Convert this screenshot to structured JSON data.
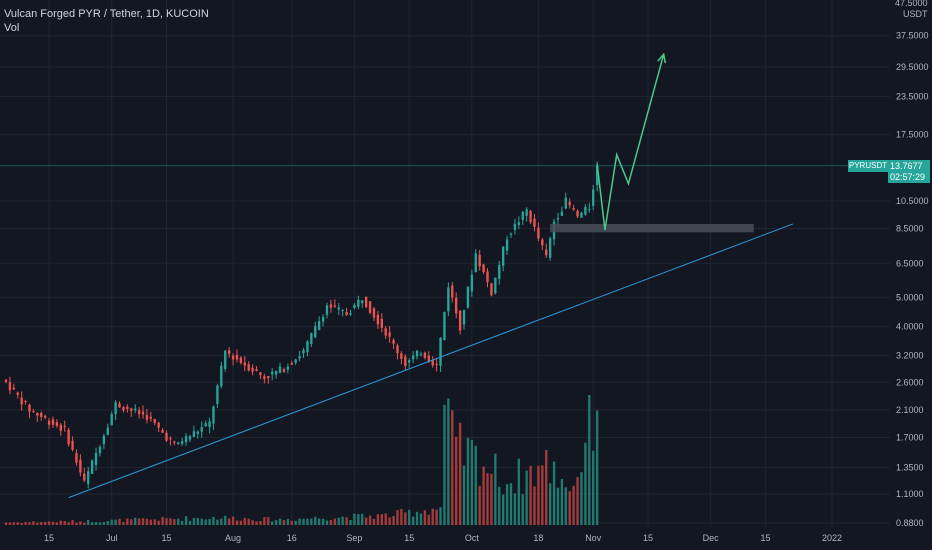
{
  "header": {
    "symbol_line": "Vulcan Forged PYR / Tether, 1D, KUCOIN",
    "vol_label": "Vol"
  },
  "price_axis": {
    "currency": "USDT",
    "top_tick": "47.5000"
  },
  "last_price": {
    "symbol": "PYRUSDT",
    "value": "13.7677",
    "countdown": "02:57:29",
    "color": "#26a69a"
  },
  "colors": {
    "background": "#131722",
    "grid": "#1f2430",
    "up": "#26a69a",
    "down": "#ef5350",
    "volume_up": "#1f7a70",
    "volume_down": "#a73a3a",
    "trendline": "#2a9bd8",
    "projection": "#4cc98a",
    "support_zone": "#4a4d58"
  },
  "chart_data": {
    "type": "candlestick",
    "title": "Vulcan Forged PYR / Tether, 1D, KUCOIN",
    "scale": "log",
    "ylabel": "USDT",
    "ylim": [
      0.88,
      47.5
    ],
    "y_ticks": [
      "37.5000",
      "29.5000",
      "23.5000",
      "17.5000",
      "10.5000",
      "8.5000",
      "6.5000",
      "5.0000",
      "4.0000",
      "3.2000",
      "2.6000",
      "2.1000",
      "1.7000",
      "1.3500",
      "1.1000",
      "0.8800"
    ],
    "y_tick_values": [
      37.5,
      29.5,
      23.5,
      17.5,
      10.5,
      8.5,
      6.5,
      5.0,
      4.0,
      3.2,
      2.6,
      2.1,
      1.7,
      1.35,
      1.1,
      0.88
    ],
    "x_ticks": [
      "15",
      "Jul",
      "15",
      "Aug",
      "16",
      "Sep",
      "15",
      "Oct",
      "18",
      "Nov",
      "15",
      "Dec",
      "15",
      "2022"
    ],
    "x_tick_dates": [
      "2021-06-15",
      "2021-07-01",
      "2021-07-15",
      "2021-08-01",
      "2021-08-16",
      "2021-09-01",
      "2021-09-15",
      "2021-10-01",
      "2021-10-18",
      "2021-11-01",
      "2021-11-15",
      "2021-12-01",
      "2021-12-15",
      "2022-01-01"
    ],
    "date_range": [
      "2021-06-04",
      "2022-01-01"
    ],
    "waypoints": {
      "price": [
        [
          "2021-06-04",
          2.6
        ],
        [
          "2021-06-10",
          2.1
        ],
        [
          "2021-06-19",
          1.8
        ],
        [
          "2021-06-24",
          1.2
        ],
        [
          "2021-07-02",
          2.2
        ],
        [
          "2021-07-10",
          2.0
        ],
        [
          "2021-07-17",
          1.6
        ],
        [
          "2021-07-26",
          1.9
        ],
        [
          "2021-07-30",
          3.3
        ],
        [
          "2021-08-09",
          2.7
        ],
        [
          "2021-08-14",
          2.9
        ],
        [
          "2021-08-19",
          3.3
        ],
        [
          "2021-08-25",
          4.7
        ],
        [
          "2021-08-30",
          4.4
        ],
        [
          "2021-09-03",
          5.0
        ],
        [
          "2021-09-08",
          4.0
        ],
        [
          "2021-09-14",
          3.0
        ],
        [
          "2021-09-18",
          3.3
        ],
        [
          "2021-09-22",
          2.95
        ],
        [
          "2021-09-25",
          5.5
        ],
        [
          "2021-09-28",
          4.0
        ],
        [
          "2021-10-02",
          7.0
        ],
        [
          "2021-10-06",
          5.2
        ],
        [
          "2021-10-10",
          8.0
        ],
        [
          "2021-10-15",
          9.8
        ],
        [
          "2021-10-20",
          6.8
        ],
        [
          "2021-10-22",
          9.0
        ],
        [
          "2021-10-25",
          10.5
        ],
        [
          "2021-10-28",
          9.3
        ],
        [
          "2021-10-31",
          10.0
        ],
        [
          "2021-11-02",
          13.7677
        ]
      ],
      "volume": [
        [
          "2021-06-04",
          0.25
        ],
        [
          "2021-06-25",
          0.35
        ],
        [
          "2021-07-28",
          0.7
        ],
        [
          "2021-08-12",
          0.5
        ],
        [
          "2021-09-10",
          0.9
        ],
        [
          "2021-09-23",
          1.6
        ],
        [
          "2021-09-24",
          10.0
        ],
        [
          "2021-09-27",
          7.0
        ],
        [
          "2021-10-03",
          6.0
        ],
        [
          "2021-10-10",
          4.0
        ],
        [
          "2021-10-20",
          5.5
        ],
        [
          "2021-10-27",
          3.5
        ],
        [
          "2021-11-02",
          12.0
        ]
      ]
    },
    "volume_ylim": [
      0,
      12
    ],
    "trendline": {
      "from": [
        "2021-06-20",
        1.07
      ],
      "to": [
        "2021-12-22",
        8.8
      ]
    },
    "support_zone": {
      "from_date": "2021-10-21",
      "to_date": "2021-12-12",
      "low": 8.25,
      "high": 8.8
    },
    "projection": [
      [
        "2021-11-02",
        14.0
      ],
      [
        "2021-11-04",
        8.4
      ],
      [
        "2021-11-07",
        15.0
      ],
      [
        "2021-11-10",
        12.0
      ],
      [
        "2021-11-19",
        32.5
      ]
    ],
    "last_price_line": 13.7677
  }
}
